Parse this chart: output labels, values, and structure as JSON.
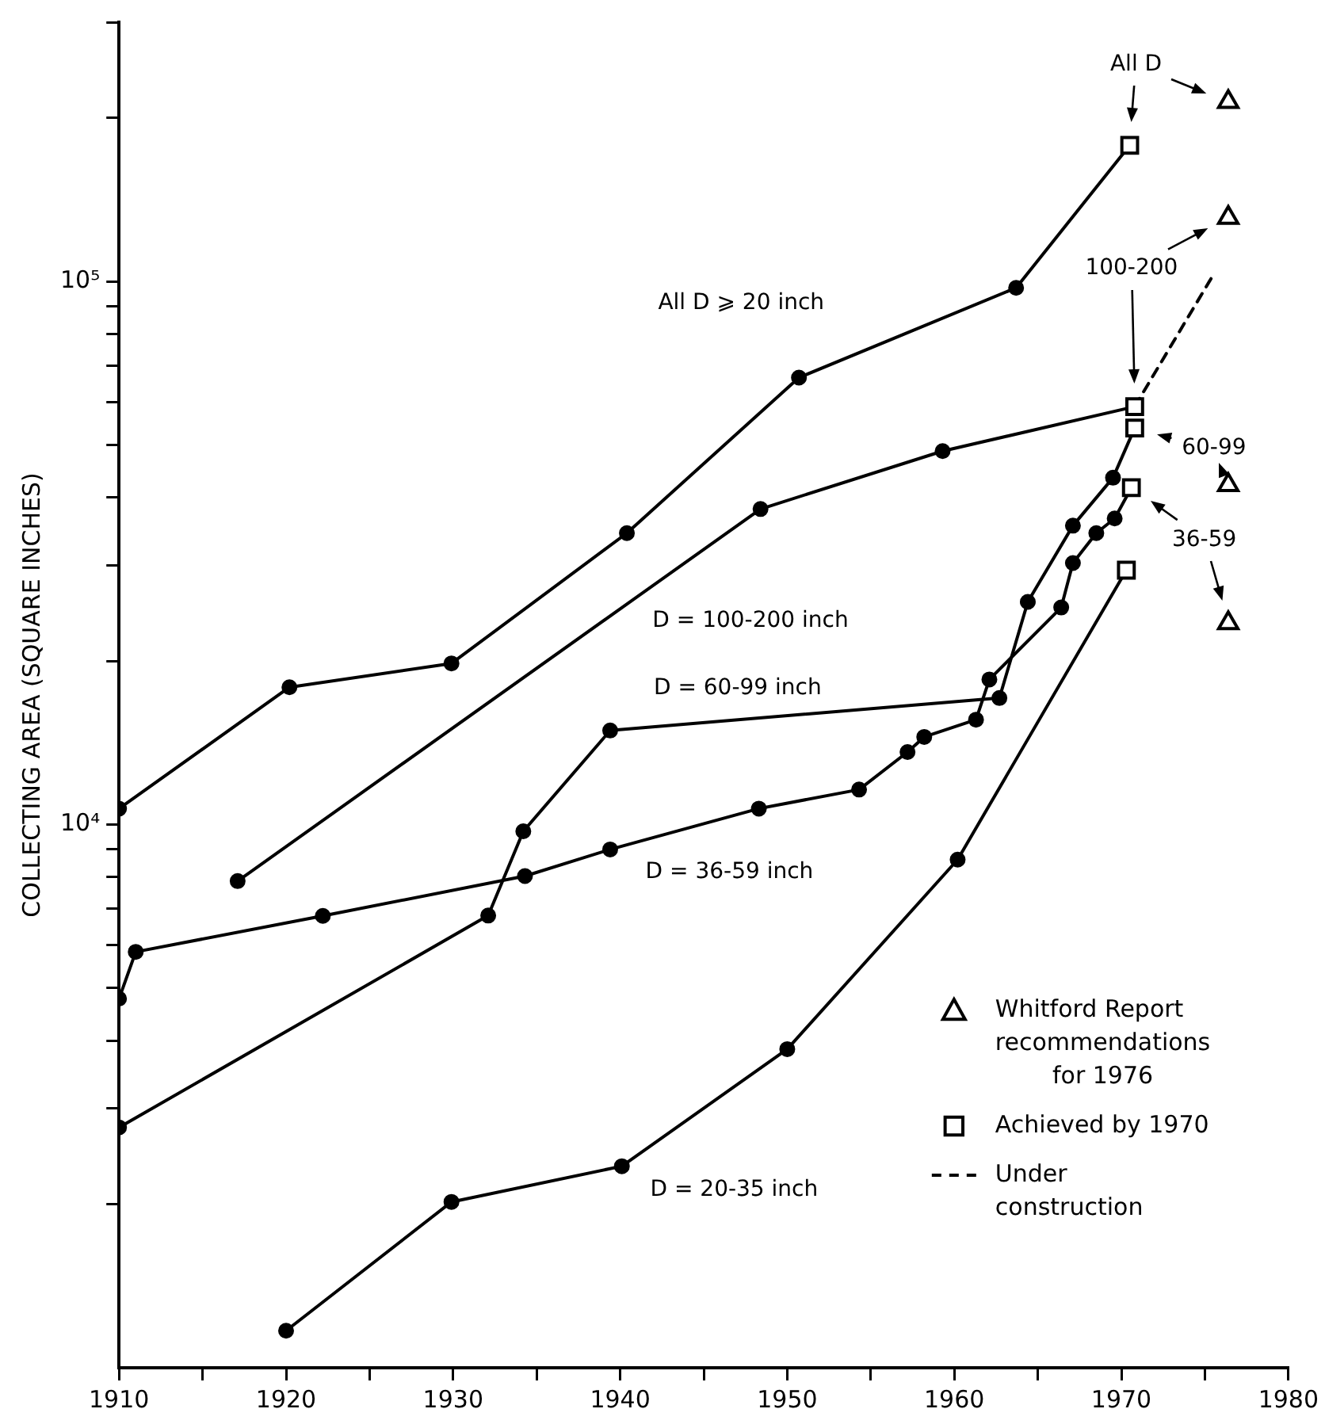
{
  "chart_data": {
    "type": "line",
    "ylabel": "COLLECTING AREA (SQUARE INCHES)",
    "log": "y",
    "grid": false,
    "marker": "circle",
    "legend": "bottom right",
    "xlim": [
      1910,
      1980
    ],
    "xticks": [
      1910,
      {
        "value": 1915,
        "label": null
      },
      1920,
      {
        "value": 1925,
        "label": null
      },
      1930,
      {
        "value": 1935,
        "label": null
      },
      1940,
      {
        "value": 1945,
        "label": null
      },
      1950,
      {
        "value": 1955,
        "label": null
      },
      1960,
      {
        "value": 1965,
        "label": null
      },
      1970,
      {
        "value": 1975,
        "label": null
      },
      1980
    ],
    "ylim": [
      1000,
      300000
    ],
    "yticks": [
      {
        "value": 2000,
        "label": null
      },
      {
        "value": 3000,
        "label": null
      },
      {
        "value": 4000,
        "label": null
      },
      {
        "value": 5000,
        "label": null
      },
      {
        "value": 6000,
        "label": null
      },
      {
        "value": 7000,
        "label": null
      },
      {
        "value": 8000,
        "label": null
      },
      {
        "value": 9000,
        "label": null
      },
      {
        "value": 10000,
        "label": "10⁴"
      },
      {
        "value": 20000,
        "label": null
      },
      {
        "value": 30000,
        "label": null
      },
      {
        "value": 40000,
        "label": null
      },
      {
        "value": 50000,
        "label": null
      },
      {
        "value": 60000,
        "label": null
      },
      {
        "value": 70000,
        "label": null
      },
      {
        "value": 80000,
        "label": null
      },
      {
        "value": 90000,
        "label": null
      },
      {
        "value": 100000,
        "label": "10⁵"
      },
      {
        "value": 200000,
        "label": null
      },
      {
        "value": 300000,
        "label": null
      }
    ],
    "series": [
      {
        "name": "All D ⩾ 20 inch",
        "color": "#000000",
        "x": [
          1910,
          1920.2,
          1929.9,
          1940.4,
          1950.7,
          1963.7,
          1970.5
        ],
        "values": [
          10700,
          17900,
          19800,
          34400,
          66500,
          97300,
          178000
        ]
      },
      {
        "name": "D = 100-200 inch",
        "color": "#000000",
        "x": [
          1917.1,
          1948.4,
          1959.3,
          1970.8
        ],
        "values": [
          7870,
          38100,
          48700,
          58800
        ]
      },
      {
        "name": "D = 60-99 inch",
        "color": "#000000",
        "x": [
          1910,
          1932.1,
          1934.2,
          1939.4,
          1962.7,
          1964.4,
          1967.1,
          1969.5,
          1970.8
        ],
        "values": [
          2770,
          6800,
          9720,
          14900,
          17100,
          25700,
          35500,
          43500,
          53700
        ]
      },
      {
        "name": "D = 36-59 inch",
        "color": "#000000",
        "x": [
          1910,
          1911.0,
          1922.2,
          1934.3,
          1939.4,
          1948.3,
          1954.3,
          1957.2,
          1958.2,
          1961.3,
          1962.1,
          1966.4,
          1967.1,
          1968.5,
          1969.6,
          1970.6
        ],
        "values": [
          4780,
          5830,
          6790,
          8040,
          9000,
          10700,
          11600,
          13600,
          14500,
          15600,
          18500,
          25100,
          30300,
          34400,
          36600,
          41700
        ]
      },
      {
        "name": "D = 20-35 inch",
        "color": "#000000",
        "x": [
          1920,
          1929.9,
          1940.1,
          1950,
          1960.2,
          1970.3
        ],
        "values": [
          1170,
          2020,
          2350,
          3860,
          8620,
          29400
        ]
      },
      {
        "type": "scatter",
        "name": "Whitford Report recommendations for 1976",
        "marker": "triangle",
        "color": "#000000",
        "x": [
          1976.4,
          1976.4,
          1976.4,
          1976.4
        ],
        "values": [
          214000,
          131000,
          42200,
          23500
        ]
      },
      {
        "type": "scatter",
        "name": "Achieved by 1970",
        "marker": "square",
        "color": "#000000",
        "x": [
          1970.5,
          1970.8,
          1970.8,
          1970.6,
          1970.3
        ],
        "values": [
          178000,
          58800,
          53700,
          41700,
          29400
        ]
      },
      {
        "name": "Under construction",
        "marker": "none",
        "line_style": "dashed",
        "color": "#000000",
        "x": [
          1970.8,
          1975.6
        ],
        "values": [
          58800,
          104000
        ]
      }
    ],
    "annotations": [
      "All D",
      "100-200",
      "60-99",
      "36-59"
    ]
  }
}
